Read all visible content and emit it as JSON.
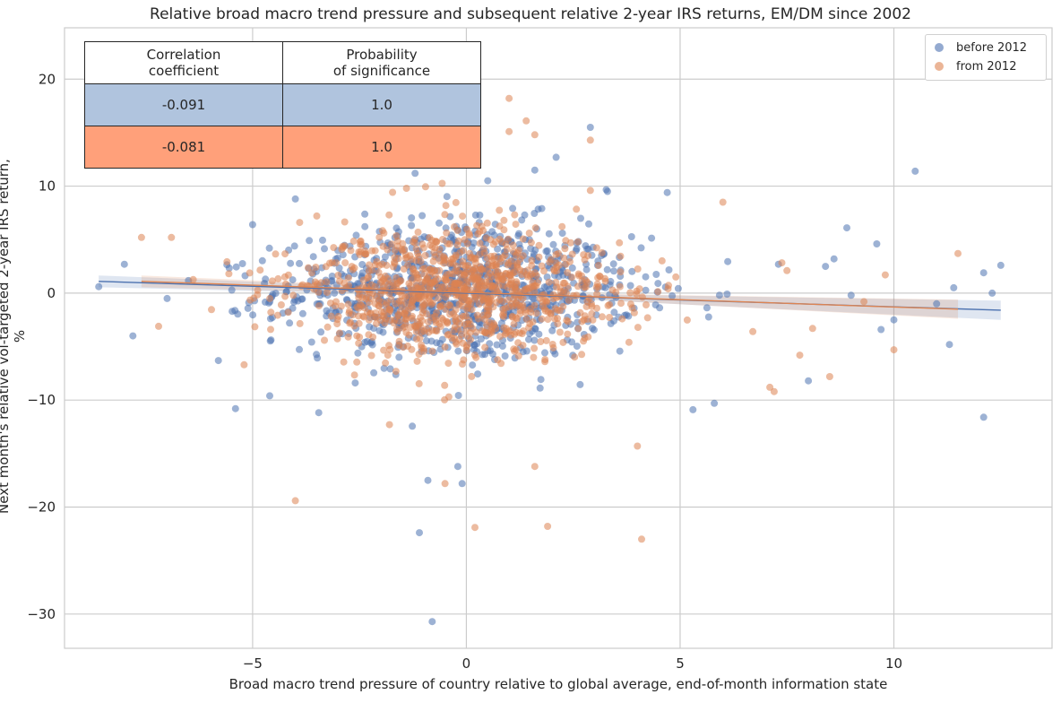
{
  "chart_data": {
    "type": "scatter",
    "title": "Relative broad macro trend pressure and subsequent relative 2-year IRS returns, EM/DM since 2002",
    "xlabel": "Broad macro trend pressure of country relative to global average, end-of-month information state",
    "ylabel": "Next month's relative vol-targeted 2-year IRS return, %",
    "xlim": [
      -9.4,
      13.7
    ],
    "ylim": [
      -33.2,
      24.8
    ],
    "xticks": [
      -5,
      0,
      5,
      10
    ],
    "yticks": [
      -30,
      -20,
      -10,
      0,
      10,
      20
    ],
    "xtick_labels": [
      "−5",
      "0",
      "5",
      "10"
    ],
    "ytick_labels": [
      "−30",
      "−20",
      "−10",
      "0",
      "10",
      "20"
    ],
    "grid": true,
    "legend_position": "top-right",
    "series": [
      {
        "name": "before 2012",
        "color": "#4c72b0",
        "regression": {
          "x": [
            -8.6,
            12.5
          ],
          "y": [
            1.1,
            -1.6
          ]
        },
        "outliers": [
          [
            -8.6,
            0.6
          ],
          [
            -8.0,
            2.7
          ],
          [
            -7.8,
            -4.0
          ],
          [
            -7.0,
            -0.5
          ],
          [
            -5.8,
            -6.3
          ],
          [
            -5.4,
            -10.8
          ],
          [
            -5.0,
            6.4
          ],
          [
            -4.6,
            -9.6
          ],
          [
            -4.0,
            8.8
          ],
          [
            -2.6,
            -8.4
          ],
          [
            -1.2,
            11.2
          ],
          [
            -0.9,
            -17.5
          ],
          [
            -1.1,
            -22.4
          ],
          [
            -0.8,
            -30.7
          ],
          [
            -0.1,
            -17.8
          ],
          [
            -0.2,
            -16.2
          ],
          [
            0.5,
            10.5
          ],
          [
            1.6,
            11.5
          ],
          [
            2.1,
            12.7
          ],
          [
            2.9,
            15.5
          ],
          [
            3.3,
            9.5
          ],
          [
            4.7,
            9.4
          ],
          [
            5.3,
            -10.9
          ],
          [
            5.8,
            -10.3
          ],
          [
            7.3,
            2.7
          ],
          [
            8.0,
            -8.2
          ],
          [
            8.4,
            2.5
          ],
          [
            8.6,
            3.2
          ],
          [
            8.9,
            6.1
          ],
          [
            9.6,
            4.6
          ],
          [
            9.0,
            -0.2
          ],
          [
            10.0,
            -2.5
          ],
          [
            10.5,
            11.4
          ],
          [
            11.3,
            -4.8
          ],
          [
            11.4,
            0.5
          ],
          [
            12.1,
            1.9
          ],
          [
            12.1,
            -11.6
          ],
          [
            12.3,
            0.0
          ],
          [
            12.5,
            2.6
          ],
          [
            11.0,
            -1.0
          ],
          [
            9.7,
            -3.4
          ]
        ],
        "cluster": {
          "center": [
            -0.2,
            0.2
          ],
          "spread": [
            2.1,
            3.6
          ],
          "count": 900
        }
      },
      {
        "name": "from 2012",
        "color": "#dd8452",
        "regression": {
          "x": [
            -7.6,
            11.5
          ],
          "y": [
            1.1,
            -1.5
          ]
        },
        "outliers": [
          [
            -7.6,
            5.2
          ],
          [
            -6.9,
            5.2
          ],
          [
            -7.2,
            -3.1
          ],
          [
            -5.2,
            -6.7
          ],
          [
            -4.0,
            -19.4
          ],
          [
            -3.9,
            6.6
          ],
          [
            -1.4,
            9.8
          ],
          [
            -1.8,
            -12.3
          ],
          [
            -0.5,
            -17.8
          ],
          [
            0.2,
            -21.9
          ],
          [
            1.0,
            18.2
          ],
          [
            1.4,
            16.1
          ],
          [
            1.0,
            15.1
          ],
          [
            1.6,
            14.8
          ],
          [
            1.6,
            -16.2
          ],
          [
            1.9,
            -21.8
          ],
          [
            2.9,
            14.3
          ],
          [
            2.9,
            9.6
          ],
          [
            4.0,
            -14.3
          ],
          [
            4.1,
            -23.0
          ],
          [
            6.0,
            8.5
          ],
          [
            7.1,
            -8.8
          ],
          [
            7.2,
            -9.2
          ],
          [
            7.8,
            -5.8
          ],
          [
            8.1,
            -3.3
          ],
          [
            9.8,
            1.7
          ],
          [
            11.5,
            3.7
          ],
          [
            10.0,
            -5.3
          ],
          [
            8.5,
            -7.8
          ],
          [
            7.5,
            2.1
          ],
          [
            6.7,
            -3.6
          ],
          [
            9.3,
            -0.8
          ]
        ],
        "cluster": {
          "center": [
            -0.3,
            0.1
          ],
          "spread": [
            1.9,
            3.4
          ],
          "count": 1000
        }
      }
    ],
    "table": {
      "headers": [
        "Correlation\ncoefficient",
        "Probability\nof significance"
      ],
      "rows": [
        {
          "label": "before 2012",
          "correlation": "-0.091",
          "probability": "1.0",
          "color": "#b0c4de"
        },
        {
          "label": "from 2012",
          "correlation": "-0.081",
          "probability": "1.0",
          "color": "#ffa07a"
        }
      ]
    }
  }
}
